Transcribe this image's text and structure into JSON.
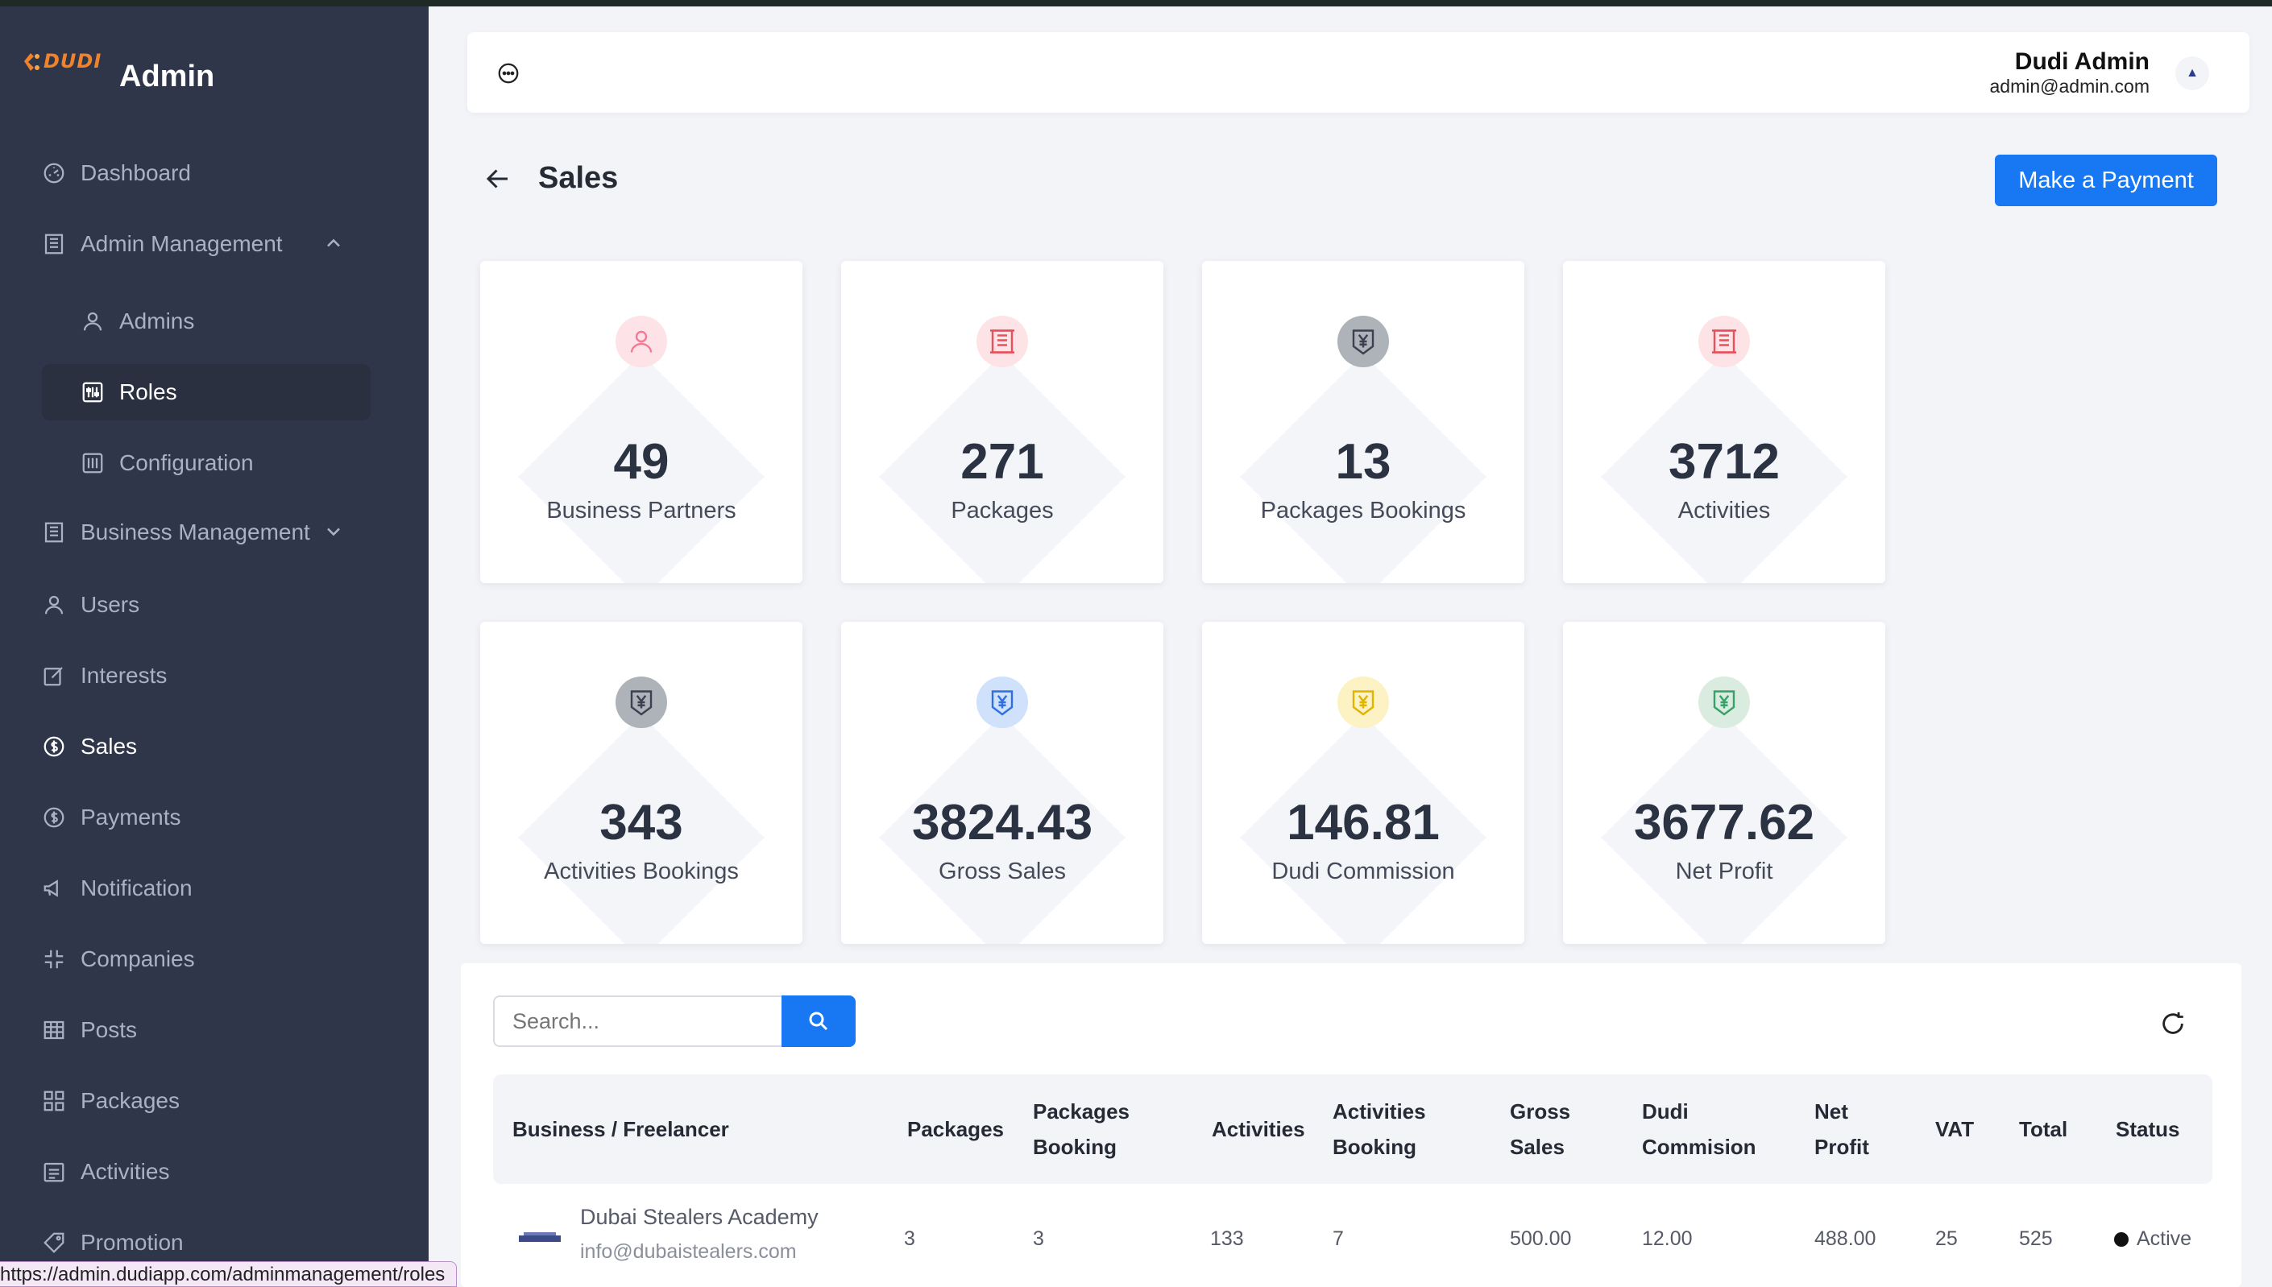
{
  "app": {
    "brand_logo_text": "DUDI",
    "title": "Admin"
  },
  "sidebar": {
    "items": [
      {
        "label": "Dashboard",
        "icon": "dashboard-icon"
      },
      {
        "label": "Admin Management",
        "icon": "building-icon",
        "expanded": true
      },
      {
        "label": "Admins",
        "icon": "user-icon"
      },
      {
        "label": "Roles",
        "icon": "sliders-icon"
      },
      {
        "label": "Configuration",
        "icon": "sliders-icon"
      },
      {
        "label": "Business Management",
        "icon": "building-icon",
        "expanded": false
      },
      {
        "label": "Users",
        "icon": "user-icon"
      },
      {
        "label": "Interests",
        "icon": "edit-icon"
      },
      {
        "label": "Sales",
        "icon": "dollar-circle-icon",
        "active": true
      },
      {
        "label": "Payments",
        "icon": "dollar-circle-icon"
      },
      {
        "label": "Notification",
        "icon": "megaphone-icon"
      },
      {
        "label": "Companies",
        "icon": "shrink-icon"
      },
      {
        "label": "Posts",
        "icon": "table-icon"
      },
      {
        "label": "Packages",
        "icon": "grid-icon"
      },
      {
        "label": "Activities",
        "icon": "calendar-icon"
      },
      {
        "label": "Promotion",
        "icon": "tag-icon"
      }
    ]
  },
  "status_url": "https://admin.dudiapp.com/adminmanagement/roles",
  "header": {
    "user_name": "Dudi Admin",
    "user_email": "admin@admin.com",
    "avatar_glyph": "▲"
  },
  "page": {
    "title": "Sales",
    "pay_button": "Make a Payment"
  },
  "stats": [
    {
      "value": "49",
      "label": "Business Partners",
      "icon": "user-icon",
      "color": "#f27b93",
      "bg": "#fde3e8"
    },
    {
      "value": "271",
      "label": "Packages",
      "icon": "building-icon",
      "color": "#e8515b",
      "bg": "#fde3e5"
    },
    {
      "value": "13",
      "label": "Packages Bookings",
      "icon": "yen-shield-icon",
      "color": "#3a4150",
      "bg": "#aeb3ba"
    },
    {
      "value": "3712",
      "label": "Activities",
      "icon": "building-icon",
      "color": "#e8515b",
      "bg": "#fde3e5"
    },
    {
      "value": "343",
      "label": "Activities Bookings",
      "icon": "yen-shield-icon",
      "color": "#3a4150",
      "bg": "#aeb3ba"
    },
    {
      "value": "3824.43",
      "label": "Gross Sales",
      "icon": "yen-shield-icon",
      "color": "#2f6fe0",
      "bg": "#cfe1fb"
    },
    {
      "value": "146.81",
      "label": "Dudi Commission",
      "icon": "yen-shield-icon",
      "color": "#e0b400",
      "bg": "#fdf2c4"
    },
    {
      "value": "3677.62",
      "label": "Net Profit",
      "icon": "yen-shield-icon",
      "color": "#38a169",
      "bg": "#d9ecdf"
    }
  ],
  "table": {
    "search_placeholder": "Search...",
    "headers": {
      "business": "Business / Freelancer",
      "packages": "Packages",
      "packages_booking_1": "Packages",
      "packages_booking_2": "Booking",
      "activities": "Activities",
      "activities_booking_1": "Activities",
      "activities_booking_2": "Booking",
      "gross_sales_1": "Gross",
      "gross_sales_2": "Sales",
      "dudi_commission_1": "Dudi",
      "dudi_commission_2": "Commision",
      "net_profit_1": "Net",
      "net_profit_2": "Profit",
      "vat": "VAT",
      "total": "Total",
      "status": "Status"
    },
    "rows": [
      {
        "name": "Dubai Stealers Academy",
        "email": "info@dubaistealers.com",
        "packages": "3",
        "packages_booking": "3",
        "activities": "133",
        "activities_booking": "7",
        "gross_sales": "500.00",
        "dudi_commission": "12.00",
        "net_profit": "488.00",
        "vat": "25",
        "total": "525",
        "status": "Active"
      }
    ]
  }
}
